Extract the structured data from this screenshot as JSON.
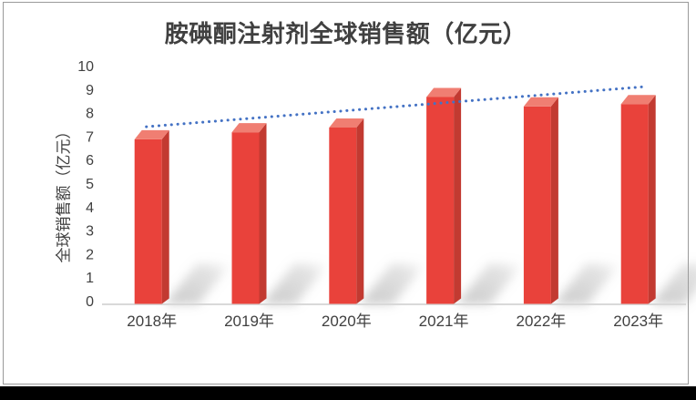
{
  "chart_data": {
    "type": "bar",
    "title": "胺碘酮注射剂全球销售额（亿元）",
    "ylabel": "全球销售额（亿元）",
    "xlabel": "",
    "categories": [
      "2018年",
      "2019年",
      "2020年",
      "2021年",
      "2022年",
      "2023年"
    ],
    "values": [
      7.0,
      7.3,
      7.5,
      8.8,
      8.4,
      8.5
    ],
    "ylim": [
      0,
      10
    ],
    "ytick_step": 1,
    "grid": false,
    "legend": "none",
    "effect": "3d-column-with-cast-shadows",
    "bar_front_color": "#E9423B",
    "bar_top_color": "#F07E72",
    "bar_side_color": "#C23A31",
    "shadow_color": "#9e9e9e",
    "axis_line_color": "#D9D9D9",
    "trendline": {
      "type": "linear",
      "style": "dotted",
      "color": "#4472C4",
      "start_value": 7.4,
      "end_value": 9.1
    }
  }
}
